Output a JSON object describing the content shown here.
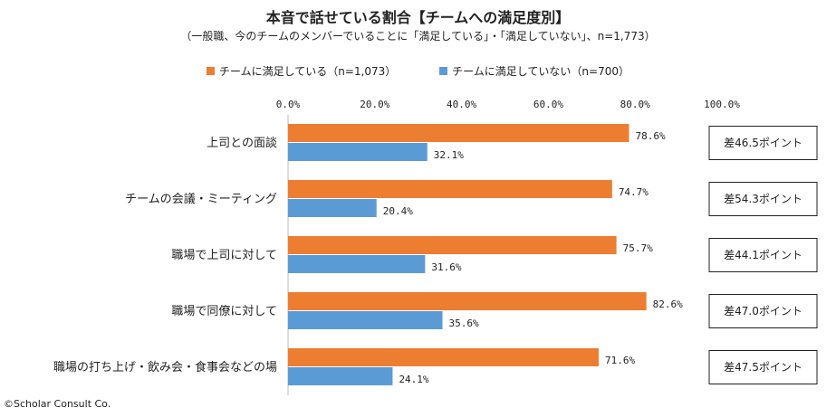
{
  "chart_data": {
    "type": "bar",
    "orientation": "horizontal",
    "title": "本音で話せている割合【チームへの満足度別】",
    "subtitle": "（一般職、今のチームのメンバーでいることに「満足している」・「満足していない」、n=1,773）",
    "categories": [
      "上司との面談",
      "チームの会議・ミーティング",
      "職場で上司に対して",
      "職場で同僚に対して",
      "職場の打ち上げ・飲み会・食事会などの場"
    ],
    "series": [
      {
        "name": "チームに満足している（n=1,073）",
        "color": "#ED7D31",
        "values": [
          78.6,
          74.7,
          75.7,
          82.6,
          71.6
        ],
        "labels": [
          "78.6%",
          "74.7%",
          "75.7%",
          "82.6%",
          "71.6%"
        ]
      },
      {
        "name": "チームに満足していない（n=700）",
        "color": "#5B9BD5",
        "values": [
          32.1,
          20.4,
          31.6,
          35.6,
          24.1
        ],
        "labels": [
          "32.1%",
          "20.4%",
          "31.6%",
          "35.6%",
          "24.1%"
        ]
      }
    ],
    "xlim": [
      0,
      100
    ],
    "ticks": [
      "0.0%",
      "20.0%",
      "40.0%",
      "60.0%",
      "80.0%",
      "100.0%"
    ],
    "differences": [
      "差46.5ポイント",
      "差54.3ポイント",
      "差44.1ポイント",
      "差47.0ポイント",
      "差47.5ポイント"
    ],
    "legend_position": "top"
  },
  "copyright": "©Scholar Consult Co."
}
